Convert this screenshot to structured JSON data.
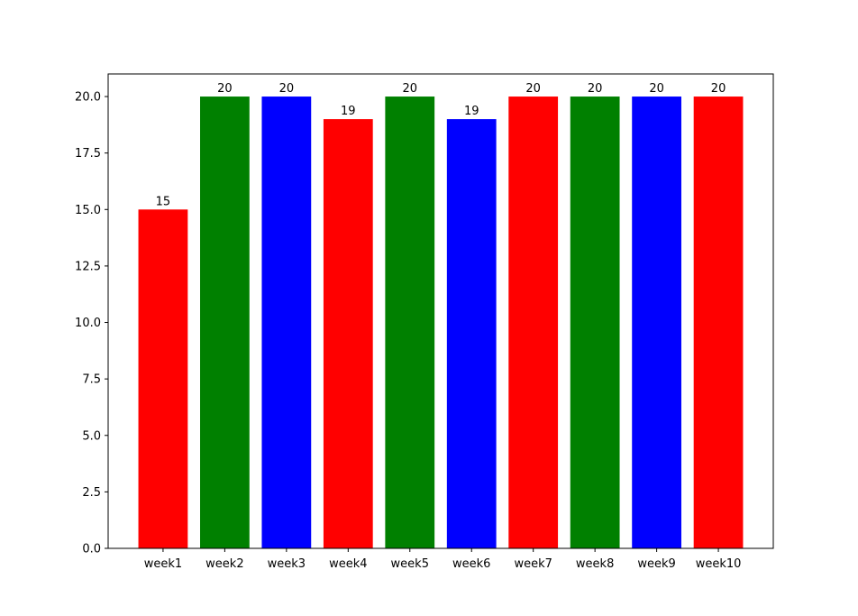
{
  "chart_data": {
    "type": "bar",
    "categories": [
      "week1",
      "week2",
      "week3",
      "week4",
      "week5",
      "week6",
      "week7",
      "week8",
      "week9",
      "week10"
    ],
    "values": [
      15,
      20,
      20,
      19,
      20,
      19,
      20,
      20,
      20,
      20
    ],
    "colors": [
      "red",
      "green",
      "blue",
      "red",
      "green",
      "blue",
      "red",
      "green",
      "blue",
      "red"
    ],
    "ylim": [
      0,
      21
    ],
    "yticks": [
      {
        "value": 0,
        "label": "0.0"
      },
      {
        "value": 2.5,
        "label": "2.5"
      },
      {
        "value": 5,
        "label": "5.0"
      },
      {
        "value": 7.5,
        "label": "7.5"
      },
      {
        "value": 10,
        "label": "10.0"
      },
      {
        "value": 12.5,
        "label": "12.5"
      },
      {
        "value": 15,
        "label": "15.0"
      },
      {
        "value": 17.5,
        "label": "17.5"
      },
      {
        "value": 20,
        "label": "20.0"
      }
    ],
    "grid": false
  }
}
